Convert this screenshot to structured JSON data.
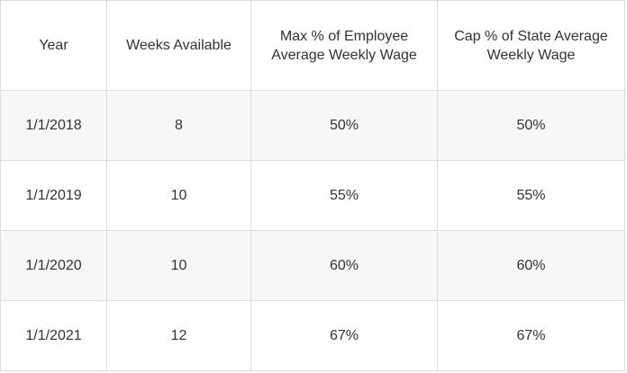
{
  "table": {
    "headers": [
      "Year",
      "Weeks Available",
      "Max % of Employee Average Weekly Wage",
      "Cap % of State Average Weekly Wage"
    ],
    "rows": [
      [
        "1/1/2018",
        "8",
        "50%",
        "50%"
      ],
      [
        "1/1/2019",
        "10",
        "55%",
        "55%"
      ],
      [
        "1/1/2020",
        "10",
        "60%",
        "60%"
      ],
      [
        "1/1/2021",
        "12",
        "67%",
        "67%"
      ]
    ]
  }
}
